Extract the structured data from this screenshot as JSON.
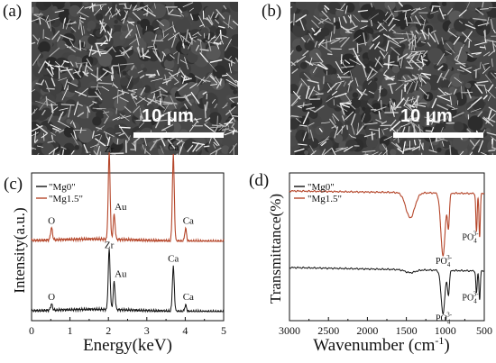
{
  "panels": {
    "a": {
      "letter": "(a)",
      "scale_label": "10 μm"
    },
    "b": {
      "letter": "(b)",
      "scale_label": "10 μm"
    },
    "c": {
      "letter": "(c)"
    },
    "d": {
      "letter": "(d)"
    }
  },
  "colors": {
    "mg0": "#111111",
    "mg15": "#b5462a"
  },
  "chart_data": [
    {
      "type": "line",
      "panel": "c",
      "xlabel": "Energy(keV)",
      "ylabel": "Intensity(a.u.)",
      "xlim": [
        0,
        5
      ],
      "xticks": [
        "0",
        "1",
        "2",
        "3",
        "4",
        "5"
      ],
      "legend_position": "top-left",
      "series": [
        {
          "name": "\"Mg0\"",
          "color": "#111111",
          "offset": 0,
          "peaks": [
            [
              0.52,
              8
            ],
            [
              2.02,
              78
            ],
            [
              2.15,
              36
            ],
            [
              3.69,
              58
            ],
            [
              4.01,
              8
            ]
          ]
        },
        {
          "name": "\"Mg1.5\"",
          "color": "#b5462a",
          "offset": 120,
          "peaks": [
            [
              0.52,
              16
            ],
            [
              2.02,
              112
            ],
            [
              2.15,
              32
            ],
            [
              3.69,
              112
            ],
            [
              4.01,
              16
            ]
          ]
        }
      ],
      "annotations": [
        {
          "text": "O",
          "x": 0.52,
          "series": 1
        },
        {
          "text": "Zr",
          "x": 2.02,
          "series": 1
        },
        {
          "text": "Au",
          "x": 2.32,
          "series": 1
        },
        {
          "text": "Ca",
          "x": 3.69,
          "series": 1
        },
        {
          "text": "Ca",
          "x": 4.08,
          "series": 1
        },
        {
          "text": "O",
          "x": 0.52,
          "series": 0
        },
        {
          "text": "Zr",
          "x": 2.02,
          "series": 0
        },
        {
          "text": "Au",
          "x": 2.32,
          "series": 0
        },
        {
          "text": "Ca",
          "x": 3.69,
          "series": 0
        },
        {
          "text": "Ca",
          "x": 4.08,
          "series": 0
        }
      ]
    },
    {
      "type": "line",
      "panel": "d",
      "xlabel": "Wavenumber (cm",
      "xlabel_sup": "-1",
      "xlabel_tail": ")",
      "ylabel": "Transmittance(%)",
      "xlim": [
        3000,
        500
      ],
      "xticks": [
        "3000",
        "2500",
        "2000",
        "1500",
        "1000",
        "500"
      ],
      "legend_position": "top-left",
      "series": [
        {
          "name": "\"Mg0\"",
          "color": "#111111",
          "baseline": 0,
          "dips": [
            [
              1450,
              4,
              90
            ],
            [
              1030,
              58,
              35
            ],
            [
              960,
              32,
              18
            ],
            [
              600,
              30,
              12
            ],
            [
              560,
              38,
              12
            ]
          ]
        },
        {
          "name": "\"Mg1.5\"",
          "color": "#b5462a",
          "baseline": 1,
          "dips": [
            [
              1450,
              34,
              80
            ],
            [
              1030,
              84,
              40
            ],
            [
              960,
              44,
              18
            ],
            [
              600,
              52,
              12
            ],
            [
              560,
              58,
              12
            ]
          ]
        }
      ],
      "annotations": [
        {
          "base": "PO",
          "sub": "4",
          "sup": "3-",
          "x": 1020,
          "series": 1
        },
        {
          "base": "PO",
          "sub": "4",
          "sup": "3-",
          "x": 610,
          "series": 1
        },
        {
          "base": "PO",
          "sub": "4",
          "sup": "3-",
          "x": 1020,
          "series": 0
        },
        {
          "base": "PO",
          "sub": "4",
          "sup": "3-",
          "x": 610,
          "series": 0
        }
      ]
    }
  ]
}
